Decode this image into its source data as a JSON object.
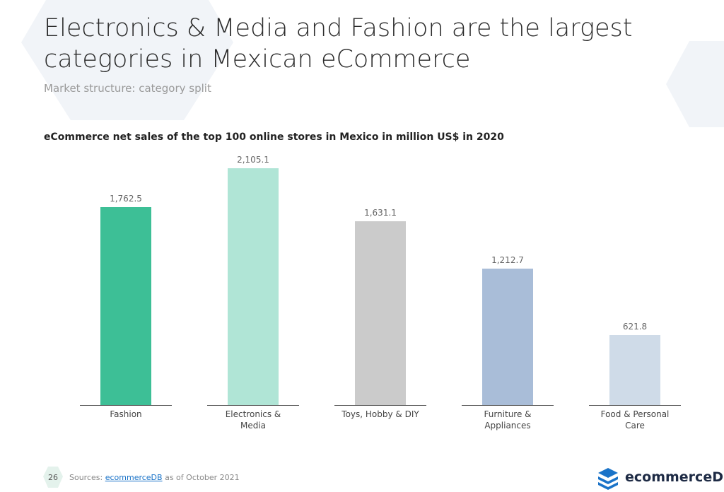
{
  "slide": {
    "title": "Electronics & Media and Fashion are the largest categories in Mexican eCommerce",
    "subtitle": "Market structure: category split",
    "page_number": "26",
    "sources_prefix": "Sources:",
    "source_link": "ecommerceDB",
    "as_of": "as of",
    "date": "October 2021",
    "logo": "ecommerceDB"
  },
  "chart_data": {
    "type": "bar",
    "title": "eCommerce net sales of the top 100 online stores in Mexico in million US$ in 2020",
    "categories": [
      "Fashion",
      "Electronics & Media",
      "Toys, Hobby & DIY",
      "Furniture & Appliances",
      "Food & Personal Care"
    ],
    "values": [
      1762.5,
      2105.1,
      1631.1,
      1212.7,
      621.8
    ],
    "value_labels": [
      "1,762.5",
      "2,105.1",
      "1,631.1",
      "1,212.7",
      "621.8"
    ],
    "colors": [
      "#3dbf96",
      "#b0e5d6",
      "#cbcbcb",
      "#a9bdd8",
      "#cfdbe8"
    ]
  }
}
